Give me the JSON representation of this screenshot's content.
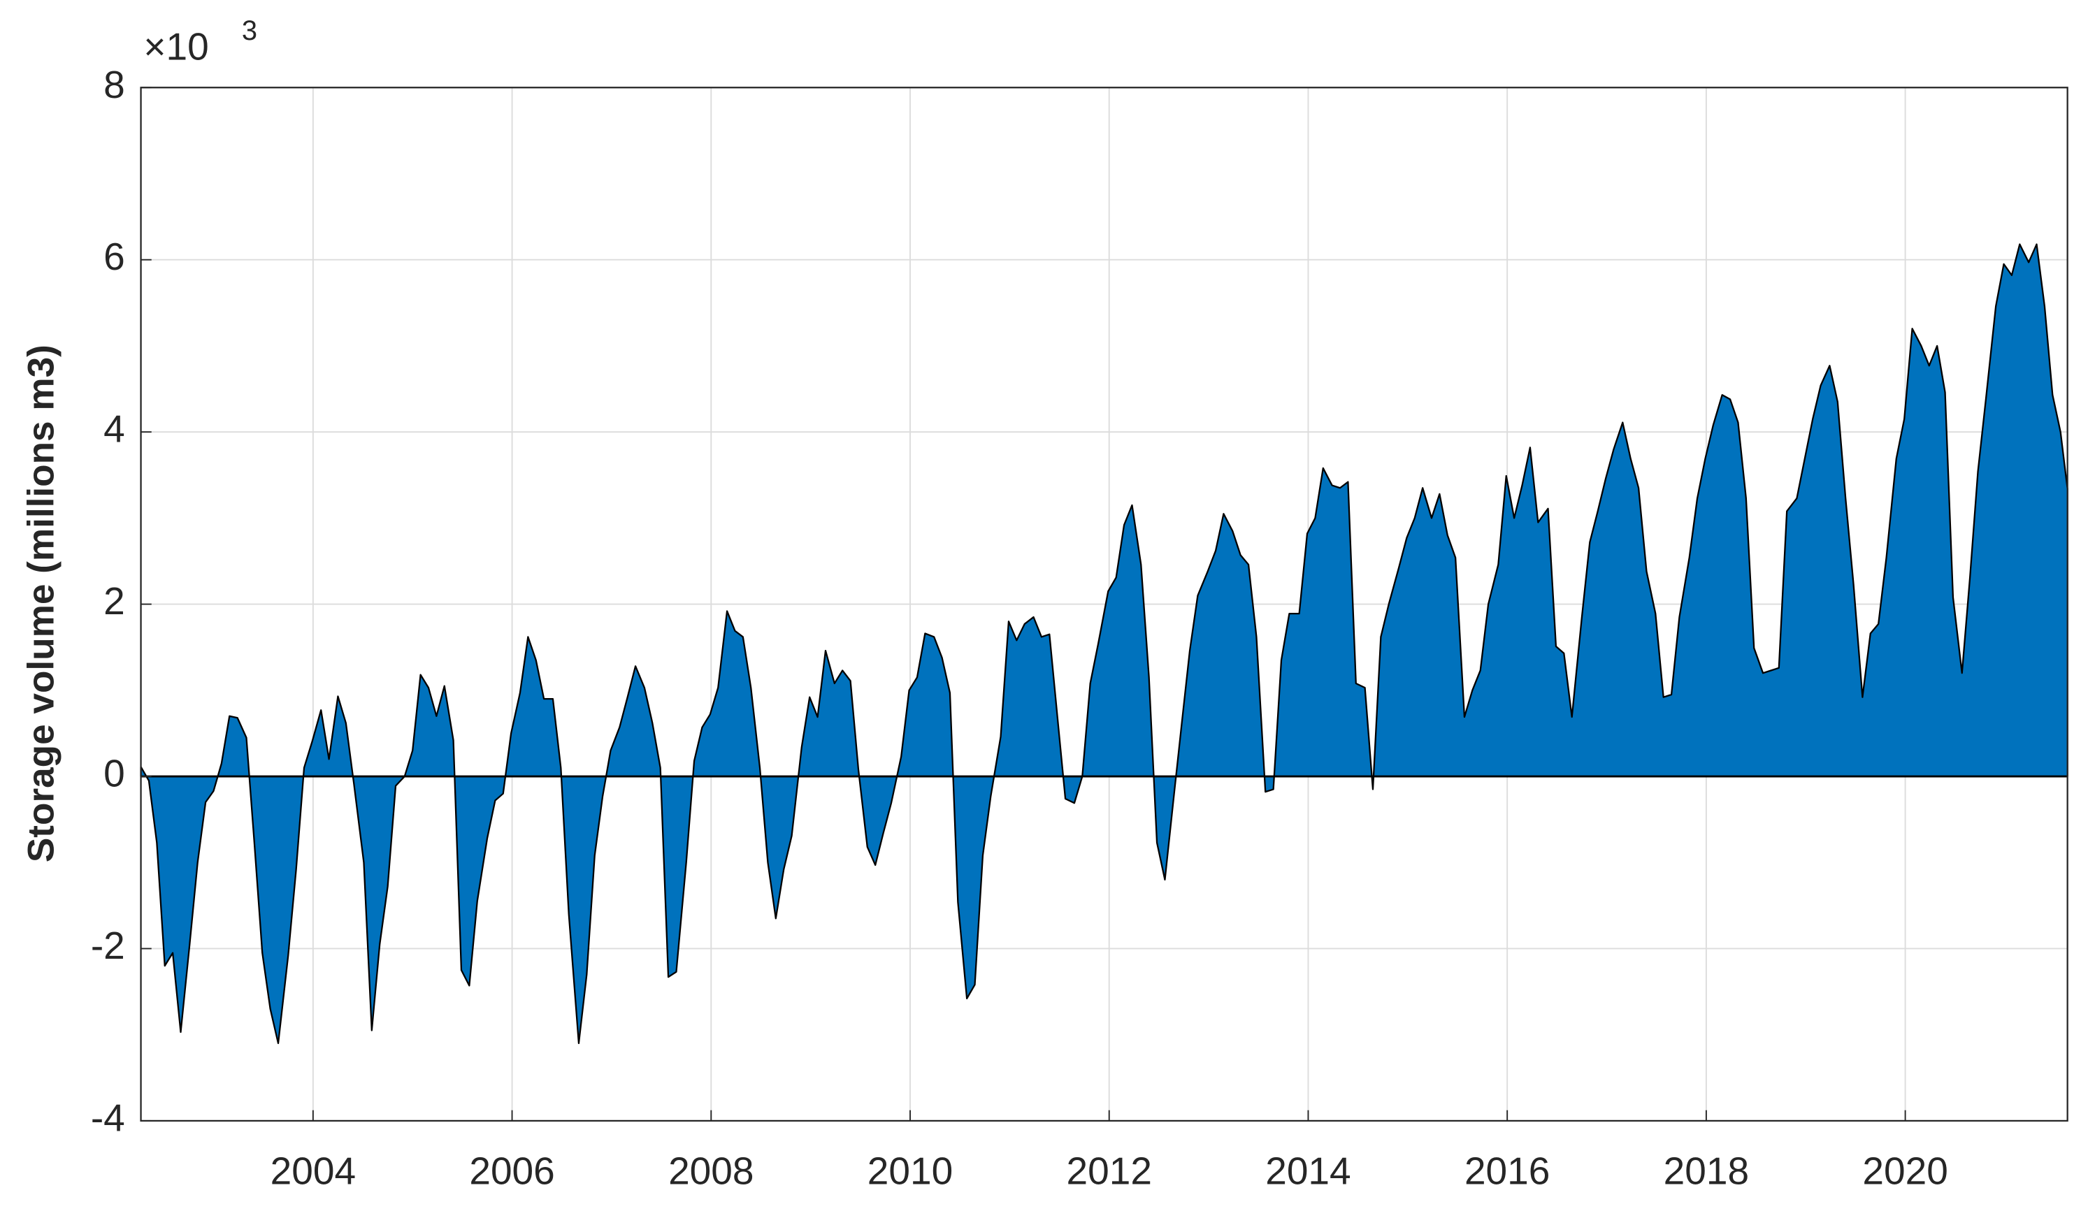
{
  "chart_data": {
    "type": "area",
    "y_label": "Storage volume (millions m3)",
    "y_multiplier": "×10",
    "y_multiplier_exponent": "3",
    "color": "#0072BD",
    "edge_color": "#000000",
    "grid": true,
    "xlim": [
      2002.27,
      2021.63
    ],
    "xticks": [
      2004,
      2006,
      2008,
      2010,
      2012,
      2014,
      2016,
      2018,
      2020
    ],
    "ylim": [
      -4,
      8
    ],
    "yticks": [
      -4,
      -2,
      0,
      2,
      4,
      6,
      8
    ],
    "x": [
      2002.27,
      2002.35,
      2002.43,
      2002.51,
      2002.59,
      2002.67,
      2002.76,
      2002.84,
      2002.92,
      2003.0,
      2003.08,
      2003.16,
      2003.24,
      2003.33,
      2003.41,
      2003.49,
      2003.57,
      2003.65,
      2003.75,
      2003.83,
      2003.91,
      2003.99,
      2004.08,
      2004.16,
      2004.25,
      2004.33,
      2004.41,
      2004.51,
      2004.59,
      2004.67,
      2004.75,
      2004.83,
      2004.92,
      2005.0,
      2005.08,
      2005.16,
      2005.24,
      2005.32,
      2005.41,
      2005.49,
      2005.57,
      2005.65,
      2005.75,
      2005.83,
      2005.91,
      2005.99,
      2006.08,
      2006.16,
      2006.24,
      2006.32,
      2006.41,
      2006.49,
      2006.57,
      2006.67,
      2006.75,
      2006.83,
      2006.91,
      2006.99,
      2007.08,
      2007.16,
      2007.24,
      2007.33,
      2007.41,
      2007.49,
      2007.57,
      2007.65,
      2007.75,
      2007.83,
      2007.91,
      2007.99,
      2008.07,
      2008.16,
      2008.24,
      2008.32,
      2008.4,
      2008.49,
      2008.57,
      2008.65,
      2008.73,
      2008.81,
      2008.91,
      2008.99,
      2009.07,
      2009.15,
      2009.24,
      2009.32,
      2009.4,
      2009.48,
      2009.57,
      2009.65,
      2009.73,
      2009.81,
      2009.91,
      2009.99,
      2010.07,
      2010.15,
      2010.24,
      2010.32,
      2010.4,
      2010.48,
      2010.57,
      2010.65,
      2010.73,
      2010.81,
      2010.91,
      2010.99,
      2011.07,
      2011.15,
      2011.24,
      2011.32,
      2011.4,
      2011.48,
      2011.56,
      2011.65,
      2011.73,
      2011.81,
      2011.89,
      2011.99,
      2012.07,
      2012.15,
      2012.23,
      2012.32,
      2012.4,
      2012.48,
      2012.56,
      2012.65,
      2012.73,
      2012.81,
      2012.89,
      2012.99,
      2013.07,
      2013.15,
      2013.24,
      2013.32,
      2013.4,
      2013.48,
      2013.57,
      2013.65,
      2013.73,
      2013.81,
      2013.91,
      2013.99,
      2014.07,
      2014.15,
      2014.24,
      2014.32,
      2014.4,
      2014.48,
      2014.57,
      2014.65,
      2014.73,
      2014.81,
      2014.91,
      2014.99,
      2015.07,
      2015.15,
      2015.24,
      2015.32,
      2015.4,
      2015.48,
      2015.57,
      2015.65,
      2015.73,
      2015.81,
      2015.91,
      2015.99,
      2016.07,
      2016.15,
      2016.23,
      2016.31,
      2016.41,
      2016.49,
      2016.57,
      2016.65,
      2016.75,
      2016.83,
      2016.91,
      2016.99,
      2017.07,
      2017.16,
      2017.24,
      2017.32,
      2017.4,
      2017.49,
      2017.57,
      2017.65,
      2017.73,
      2017.83,
      2017.91,
      2017.99,
      2018.07,
      2018.16,
      2018.24,
      2018.32,
      2018.4,
      2018.48,
      2018.57,
      2018.65,
      2018.73,
      2018.81,
      2018.91,
      2018.99,
      2019.07,
      2019.15,
      2019.24,
      2019.32,
      2019.4,
      2019.48,
      2019.57,
      2019.65,
      2019.73,
      2019.81,
      2019.91,
      2019.99,
      2020.07,
      2020.16,
      2020.24,
      2020.32,
      2020.4,
      2020.48,
      2020.57,
      2020.65,
      2020.73,
      2020.81,
      2020.91,
      2020.99,
      2021.07,
      2021.15,
      2021.24,
      2021.32,
      2021.4,
      2021.48,
      2021.56,
      2021.63
    ],
    "values": [
      0.11,
      -0.05,
      -0.77,
      -2.2,
      -2.05,
      -2.97,
      -1.95,
      -1.0,
      -0.3,
      -0.17,
      0.15,
      0.7,
      0.68,
      0.45,
      -0.77,
      -2.05,
      -2.7,
      -3.1,
      -2.08,
      -1.08,
      0.1,
      0.4,
      0.77,
      0.2,
      0.93,
      0.62,
      -0.08,
      -1.0,
      -2.95,
      -1.95,
      -1.28,
      -0.11,
      0,
      0.3,
      1.18,
      1.03,
      0.7,
      1.05,
      0.42,
      -2.25,
      -2.43,
      -1.45,
      -0.72,
      -0.28,
      -0.2,
      0.5,
      0.97,
      1.62,
      1.35,
      0.9,
      0.9,
      0.1,
      -1.6,
      -3.1,
      -2.3,
      -0.92,
      -0.23,
      0.3,
      0.57,
      0.92,
      1.28,
      1.03,
      0.62,
      0.1,
      -2.33,
      -2.27,
      -1.0,
      0.18,
      0.57,
      0.72,
      1.03,
      1.92,
      1.69,
      1.62,
      1.03,
      0.1,
      -1.0,
      -1.65,
      -1.08,
      -0.69,
      0.34,
      0.92,
      0.69,
      1.46,
      1.08,
      1.23,
      1.11,
      0.08,
      -0.82,
      -1.03,
      -0.66,
      -0.31,
      0.23,
      1.0,
      1.15,
      1.66,
      1.62,
      1.38,
      0.97,
      -1.46,
      -2.58,
      -2.42,
      -0.92,
      -0.23,
      0.46,
      1.8,
      1.58,
      1.77,
      1.85,
      1.62,
      1.65,
      0.69,
      -0.26,
      -0.31,
      0,
      1.08,
      1.54,
      2.15,
      2.31,
      2.92,
      3.15,
      2.46,
      1.15,
      -0.77,
      -1.2,
      -0.23,
      0.62,
      1.46,
      2.1,
      2.38,
      2.62,
      3.05,
      2.85,
      2.57,
      2.46,
      1.62,
      -0.18,
      -0.15,
      1.35,
      1.89,
      1.89,
      2.82,
      3.0,
      3.58,
      3.38,
      3.35,
      3.42,
      1.08,
      1.03,
      -0.15,
      1.62,
      2.0,
      2.42,
      2.77,
      3.0,
      3.35,
      3.0,
      3.28,
      2.8,
      2.54,
      0.69,
      1.0,
      1.23,
      2.0,
      2.46,
      3.49,
      3.0,
      3.38,
      3.82,
      2.95,
      3.11,
      1.51,
      1.43,
      0.69,
      1.85,
      2.72,
      3.08,
      3.46,
      3.8,
      4.11,
      3.69,
      3.35,
      2.38,
      1.89,
      0.92,
      0.95,
      1.85,
      2.54,
      3.23,
      3.69,
      4.08,
      4.43,
      4.38,
      4.11,
      3.23,
      1.49,
      1.2,
      1.23,
      1.26,
      3.08,
      3.23,
      3.69,
      4.15,
      4.54,
      4.77,
      4.35,
      3.23,
      2.23,
      0.92,
      1.66,
      1.77,
      2.54,
      3.69,
      4.15,
      5.2,
      5.0,
      4.77,
      5.0,
      4.46,
      2.08,
      1.2,
      2.31,
      3.54,
      4.38,
      5.46,
      5.95,
      5.82,
      6.18,
      5.97,
      6.18,
      5.46,
      4.43,
      4.0,
      3.34
    ]
  }
}
